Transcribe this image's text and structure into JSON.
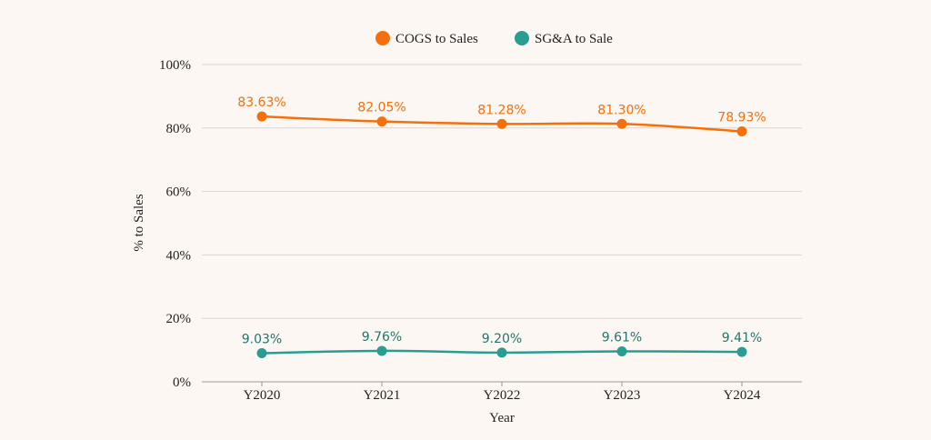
{
  "chart_data": {
    "type": "line",
    "title": "",
    "xlabel": "Year",
    "ylabel": "% to Sales",
    "categories": [
      "Y2020",
      "Y2021",
      "Y2022",
      "Y2023",
      "Y2024"
    ],
    "ylim": [
      0,
      100
    ],
    "yticks": [
      0,
      20,
      40,
      60,
      80,
      100
    ],
    "ytick_labels": [
      "0%",
      "20%",
      "40%",
      "60%",
      "80%",
      "100%"
    ],
    "grid": true,
    "legend_position": "top-center",
    "series": [
      {
        "name": "COGS to Sales",
        "color": "#f5700a",
        "values": [
          83.63,
          82.05,
          81.28,
          81.3,
          78.93
        ],
        "labels": [
          "83.63%",
          "82.05%",
          "81.28%",
          "81.30%",
          "78.93%"
        ]
      },
      {
        "name": "SG&A to Sale",
        "color": "#2a9d93",
        "values": [
          9.03,
          9.76,
          9.2,
          9.61,
          9.41
        ],
        "labels": [
          "9.03%",
          "9.76%",
          "9.20%",
          "9.61%",
          "9.41%"
        ]
      }
    ]
  }
}
